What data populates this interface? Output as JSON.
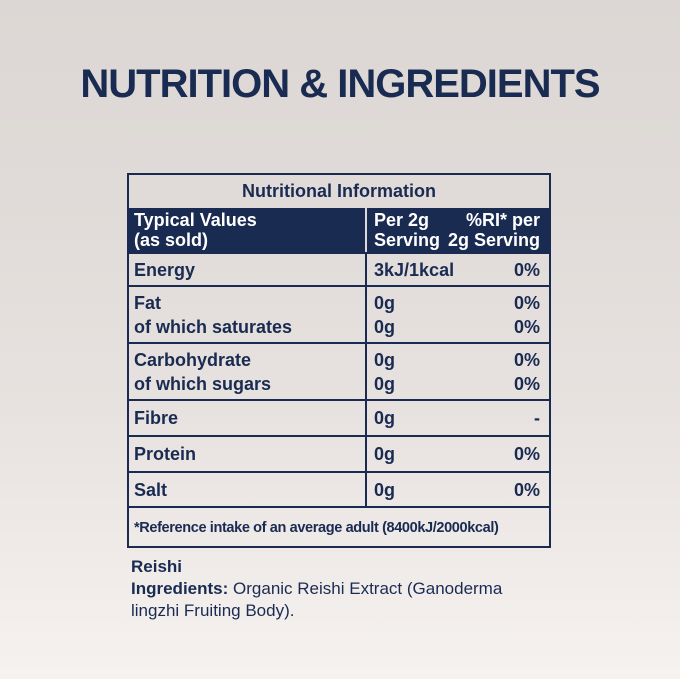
{
  "page": {
    "title": "NUTRITION & INGREDIENTS"
  },
  "colors": {
    "navy": "#1a2b52",
    "header_bg": "#1a2b52",
    "header_text": "#ffffff",
    "bg_top": "#dcd7d4",
    "bg_bottom": "#f6f2f0"
  },
  "table": {
    "title": "Nutritional Information",
    "header": {
      "col1_line1": "Typical Values",
      "col1_line2": "(as sold)",
      "col2_line1": "Per 2g",
      "col2_line2": "Serving",
      "col3_line1": "%RI* per",
      "col3_line2": "2g Serving"
    },
    "rows": [
      {
        "label": "Energy",
        "value": "3kJ/1kcal",
        "ri": "0%"
      },
      {
        "label": "Fat",
        "label2": "of which saturates",
        "value": "0g",
        "value2": "0g",
        "ri": "0%",
        "ri2": "0%"
      },
      {
        "label": "Carbohydrate",
        "label2": "of which sugars",
        "value": "0g",
        "value2": "0g",
        "ri": "0%",
        "ri2": "0%"
      },
      {
        "label": "Fibre",
        "value": "0g",
        "ri": "-"
      },
      {
        "label": "Protein",
        "value": "0g",
        "ri": "0%"
      },
      {
        "label": "Salt",
        "value": "0g",
        "ri": "0%"
      }
    ],
    "footnote": "*Reference intake of an average adult (8400kJ/2000kcal)"
  },
  "ingredients": {
    "product": "Reishi",
    "label": "Ingredients:",
    "text": "Organic Reishi Extract (Ganoderma\nlingzhi Fruiting Body)."
  }
}
